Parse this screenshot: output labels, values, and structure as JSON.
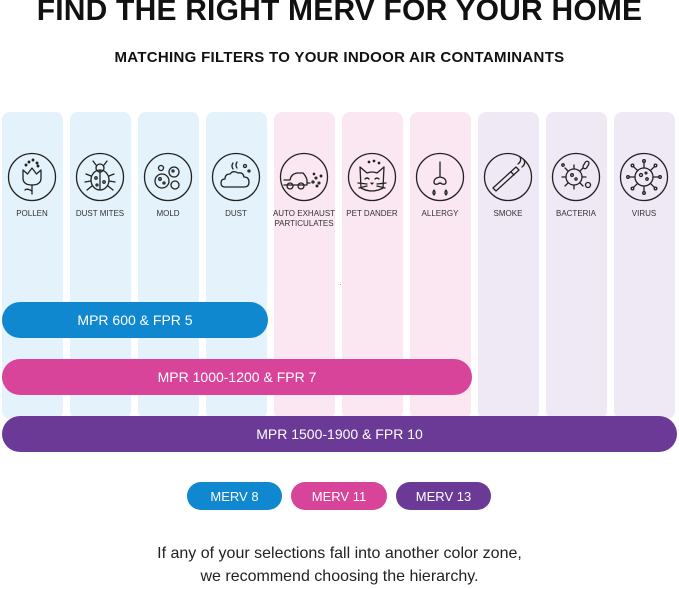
{
  "header": {
    "title": "FIND THE RIGHT MERV FOR YOUR HOME",
    "subtitle": "MATCHING FILTERS TO YOUR INDOOR AIR CONTAMINANTS"
  },
  "contaminants": [
    {
      "label": "POLLEN",
      "icon": "flower-icon",
      "zone": "MERV 8"
    },
    {
      "label": "DUST MITES",
      "icon": "dust-mite-icon",
      "zone": "MERV 8"
    },
    {
      "label": "MOLD",
      "icon": "mold-icon",
      "zone": "MERV 8"
    },
    {
      "label": "DUST",
      "icon": "dust-cloud-icon",
      "zone": "MERV 8"
    },
    {
      "label": "AUTO EXHAUST\nPARTICULATES",
      "icon": "car-exhaust-icon",
      "zone": "MERV 11"
    },
    {
      "label": "PET DANDER",
      "icon": "cat-icon",
      "zone": "MERV 11"
    },
    {
      "label": "ALLERGY",
      "icon": "nose-icon",
      "zone": "MERV 11"
    },
    {
      "label": "SMOKE",
      "icon": "cigarette-icon",
      "zone": "MERV 13"
    },
    {
      "label": "BACTERIA",
      "icon": "bacteria-icon",
      "zone": "MERV 13"
    },
    {
      "label": "VIRUS",
      "icon": "virus-icon",
      "zone": "MERV 13"
    }
  ],
  "bars": [
    {
      "label": "MPR 600 & FPR 5",
      "color": "#1088cf"
    },
    {
      "label": "MPR 1000-1200 & FPR 7",
      "color": "#d9449b"
    },
    {
      "label": "MPR 1500-1900 & FPR 10",
      "color": "#6b3a97"
    }
  ],
  "legend": [
    {
      "label": "MERV 8",
      "color": "#1088cf"
    },
    {
      "label": "MERV 11",
      "color": "#d9449b"
    },
    {
      "label": "MERV 13",
      "color": "#6b3a97"
    }
  ],
  "column_colors": {
    "MERV 8": "#e3f2fb",
    "MERV 11": "#fbe7f1",
    "MERV 13": "#efe8f5"
  },
  "footer": {
    "line1": "If any of your selections fall into another color zone,",
    "line2": "we recommend choosing the hierarchy."
  }
}
